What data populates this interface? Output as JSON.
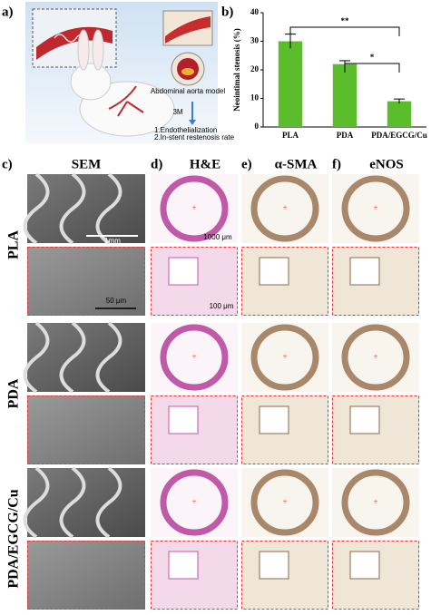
{
  "figure": {
    "panel_labels": [
      "a)",
      "b)",
      "c)",
      "d)",
      "e)",
      "f)"
    ],
    "column_titles": [
      "SEM",
      "H&E",
      "α-SMA",
      "eNOS"
    ],
    "row_labels": [
      "PLA",
      "PDA",
      "PDA/EGCG/Cu"
    ],
    "panel_a_texts": [
      "Abdominal aorta model",
      "3M",
      "1.Endothelialization",
      "2.In-stent restenosis rate"
    ],
    "scale_bars": [
      "1mm",
      "50 μm",
      "1000 μm",
      "100 μm"
    ]
  },
  "chart_data": {
    "type": "bar",
    "y_label": "Neointimal stenosis (%)",
    "categories": [
      "PLA",
      "PDA",
      "PDA/EGCG/Cu"
    ],
    "values": [
      30,
      22,
      9
    ],
    "errors": [
      2.5,
      1.2,
      0.8
    ],
    "color": "#5bbd2b",
    "ylim": [
      0,
      40
    ],
    "yticks": [
      0,
      10,
      20,
      30,
      40
    ],
    "annotations": [
      "**",
      "*"
    ]
  }
}
